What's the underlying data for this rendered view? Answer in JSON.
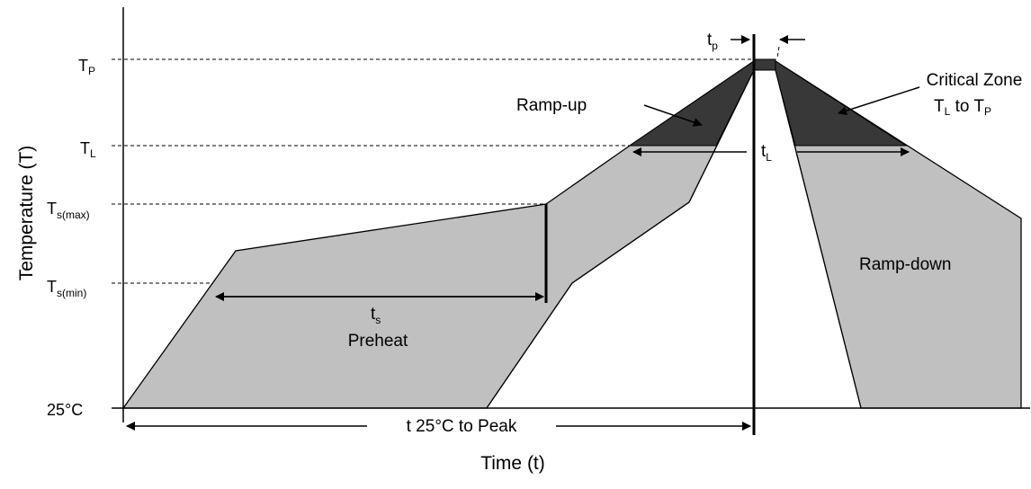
{
  "diagram": {
    "y_axis_label": "Temperature (T)",
    "x_axis_label": "Time (t)",
    "levels": {
      "tp": {
        "main": "T",
        "sub": "P"
      },
      "tl": {
        "main": "T",
        "sub": "L"
      },
      "tsmax": {
        "main": "T",
        "sub": "s(max)"
      },
      "tsmin": {
        "main": "T",
        "sub": "s(min)"
      },
      "t25": {
        "main": "25°C"
      }
    },
    "annotations": {
      "ramp_up": "Ramp-up",
      "ramp_down": "Ramp-down",
      "critical_zone_line1": "Critical Zone",
      "critical_zone_line2": {
        "t1": "T",
        "s1": "L",
        "mid": " to ",
        "t2": "T",
        "s2": "P"
      },
      "tp_duration": {
        "main": "t",
        "sub": "p"
      },
      "tl_duration": {
        "main": "t",
        "sub": "L"
      },
      "ts_duration": {
        "main": "t",
        "sub": "s"
      },
      "preheat": "Preheat",
      "t25_to_peak": "t 25°C to Peak"
    },
    "colors": {
      "envelope_fill": "#c0c0c0",
      "critical_zone_fill": "#383838",
      "line": "#000000",
      "background": "#ffffff"
    }
  }
}
